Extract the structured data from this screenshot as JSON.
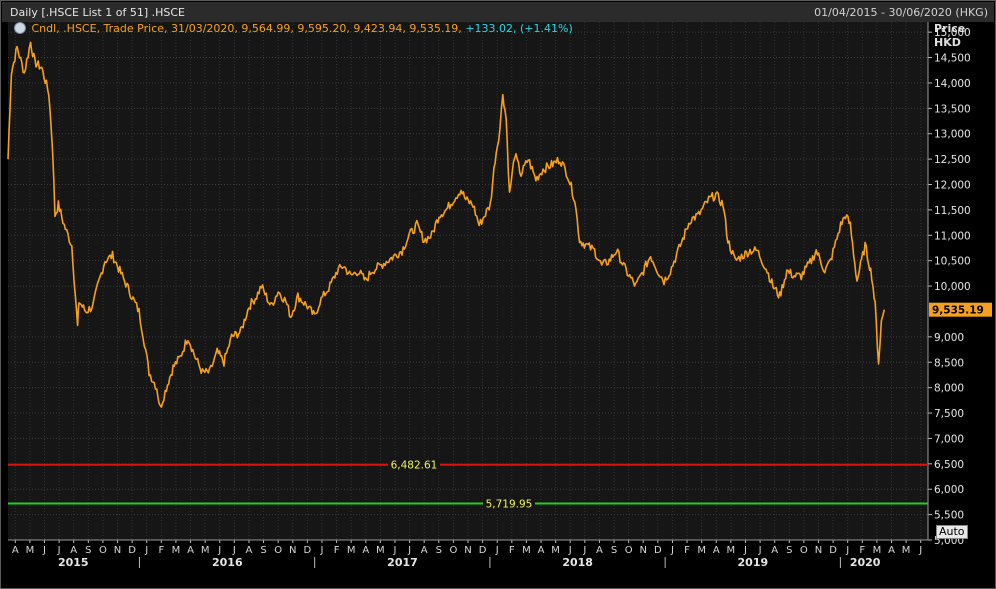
{
  "header": {
    "title": "Daily [.HSCE List 1 of 51] .HSCE",
    "date_range": "01/04/2015 - 30/06/2020 (HKG)"
  },
  "legend": {
    "text": "Cndl, .HSCE, Trade Price, 31/03/2020, 9,564.99, 9,595.20, 9,423.94, 9,535.19,",
    "change": "+133.02, (+1.41%)"
  },
  "y_axis_header": {
    "line1": "Price",
    "line2": "HKD"
  },
  "auto_button": "Auto",
  "chart_data": {
    "type": "line",
    "series": [
      {
        "color": "#f7a01c",
        "points": [
          [
            "2015-04-01",
            12500
          ],
          [
            "2015-04-08",
            14200
          ],
          [
            "2015-04-20",
            14700
          ],
          [
            "2015-05-05",
            14200
          ],
          [
            "2015-05-18",
            14800
          ],
          [
            "2015-05-27",
            14400
          ],
          [
            "2015-06-10",
            14300
          ],
          [
            "2015-06-25",
            13800
          ],
          [
            "2015-07-03",
            12700
          ],
          [
            "2015-07-08",
            11400
          ],
          [
            "2015-07-15",
            11600
          ],
          [
            "2015-07-27",
            11200
          ],
          [
            "2015-08-12",
            10800
          ],
          [
            "2015-08-24",
            9200
          ],
          [
            "2015-08-27",
            9700
          ],
          [
            "2015-09-10",
            9500
          ],
          [
            "2015-09-25",
            9600
          ],
          [
            "2015-10-05",
            10000
          ],
          [
            "2015-10-20",
            10500
          ],
          [
            "2015-11-05",
            10600
          ],
          [
            "2015-11-20",
            10300
          ],
          [
            "2015-12-10",
            9900
          ],
          [
            "2015-12-30",
            9500
          ],
          [
            "2016-01-10",
            8900
          ],
          [
            "2016-01-20",
            8300
          ],
          [
            "2016-02-05",
            8000
          ],
          [
            "2016-02-12",
            7600
          ],
          [
            "2016-02-25",
            8000
          ],
          [
            "2016-03-10",
            8400
          ],
          [
            "2016-03-25",
            8600
          ],
          [
            "2016-04-10",
            9000
          ],
          [
            "2016-04-25",
            8600
          ],
          [
            "2016-05-10",
            8300
          ],
          [
            "2016-05-25",
            8300
          ],
          [
            "2016-06-10",
            8700
          ],
          [
            "2016-06-24",
            8500
          ],
          [
            "2016-07-10",
            9000
          ],
          [
            "2016-07-29",
            9100
          ],
          [
            "2016-08-15",
            9600
          ],
          [
            "2016-08-31",
            9800
          ],
          [
            "2016-09-10",
            10000
          ],
          [
            "2016-09-30",
            9600
          ],
          [
            "2016-10-15",
            9900
          ],
          [
            "2016-10-31",
            9700
          ],
          [
            "2016-11-10",
            9400
          ],
          [
            "2016-11-25",
            9800
          ],
          [
            "2016-12-15",
            9600
          ],
          [
            "2016-12-30",
            9400
          ],
          [
            "2017-01-10",
            9700
          ],
          [
            "2017-01-31",
            10000
          ],
          [
            "2017-02-15",
            10300
          ],
          [
            "2017-02-28",
            10400
          ],
          [
            "2017-03-15",
            10200
          ],
          [
            "2017-03-31",
            10300
          ],
          [
            "2017-04-15",
            10100
          ],
          [
            "2017-04-28",
            10300
          ],
          [
            "2017-05-15",
            10400
          ],
          [
            "2017-05-31",
            10500
          ],
          [
            "2017-06-15",
            10600
          ],
          [
            "2017-06-30",
            10700
          ],
          [
            "2017-07-15",
            11000
          ],
          [
            "2017-07-31",
            11200
          ],
          [
            "2017-08-15",
            10900
          ],
          [
            "2017-08-31",
            11000
          ],
          [
            "2017-09-15",
            11400
          ],
          [
            "2017-09-30",
            11500
          ],
          [
            "2017-10-15",
            11700
          ],
          [
            "2017-10-31",
            11900
          ],
          [
            "2017-11-10",
            11700
          ],
          [
            "2017-11-25",
            11600
          ],
          [
            "2017-12-08",
            11200
          ],
          [
            "2017-12-31",
            11600
          ],
          [
            "2018-01-10",
            12500
          ],
          [
            "2018-01-20",
            13100
          ],
          [
            "2018-01-26",
            13800
          ],
          [
            "2018-02-02",
            13300
          ],
          [
            "2018-02-09",
            11800
          ],
          [
            "2018-02-20",
            12600
          ],
          [
            "2018-03-05",
            12200
          ],
          [
            "2018-03-20",
            12500
          ],
          [
            "2018-04-05",
            12100
          ],
          [
            "2018-04-20",
            12300
          ],
          [
            "2018-05-10",
            12400
          ],
          [
            "2018-05-25",
            12500
          ],
          [
            "2018-06-10",
            12200
          ],
          [
            "2018-06-25",
            11700
          ],
          [
            "2018-07-05",
            10900
          ],
          [
            "2018-07-20",
            10800
          ],
          [
            "2018-08-05",
            10700
          ],
          [
            "2018-08-20",
            10400
          ],
          [
            "2018-09-05",
            10500
          ],
          [
            "2018-09-20",
            10700
          ],
          [
            "2018-10-10",
            10300
          ],
          [
            "2018-10-30",
            10000
          ],
          [
            "2018-11-15",
            10300
          ],
          [
            "2018-11-30",
            10600
          ],
          [
            "2018-12-15",
            10300
          ],
          [
            "2018-12-28",
            10100
          ],
          [
            "2019-01-10",
            10300
          ],
          [
            "2019-01-31",
            10800
          ],
          [
            "2019-02-20",
            11300
          ],
          [
            "2019-03-10",
            11400
          ],
          [
            "2019-03-31",
            11700
          ],
          [
            "2019-04-15",
            11800
          ],
          [
            "2019-04-30",
            11600
          ],
          [
            "2019-05-10",
            10900
          ],
          [
            "2019-05-25",
            10500
          ],
          [
            "2019-06-10",
            10600
          ],
          [
            "2019-06-25",
            10700
          ],
          [
            "2019-07-10",
            10700
          ],
          [
            "2019-07-31",
            10300
          ],
          [
            "2019-08-12",
            10000
          ],
          [
            "2019-08-26",
            9800
          ],
          [
            "2019-09-10",
            10300
          ],
          [
            "2019-09-25",
            10200
          ],
          [
            "2019-10-10",
            10200
          ],
          [
            "2019-10-31",
            10500
          ],
          [
            "2019-11-10",
            10700
          ],
          [
            "2019-11-28",
            10300
          ],
          [
            "2019-12-10",
            10500
          ],
          [
            "2019-12-31",
            11200
          ],
          [
            "2020-01-10",
            11400
          ],
          [
            "2020-01-20",
            11200
          ],
          [
            "2020-02-03",
            10100
          ],
          [
            "2020-02-20",
            10800
          ],
          [
            "2020-03-05",
            10200
          ],
          [
            "2020-03-12",
            9600
          ],
          [
            "2020-03-19",
            8500
          ],
          [
            "2020-03-25",
            9300
          ],
          [
            "2020-03-31",
            9535
          ]
        ]
      }
    ],
    "y_ticks": [
      "15,000",
      "14,500",
      "14,000",
      "13,500",
      "13,000",
      "12,500",
      "12,000",
      "11,500",
      "11,000",
      "10,500",
      "10,000",
      "9,000",
      "8,500",
      "8,000",
      "7,500",
      "7,000",
      "6,500",
      "6,000",
      "5,500",
      "5,000"
    ],
    "ylim": [
      5000,
      15200
    ],
    "last_price": {
      "value": 9535.19,
      "label": "9,535.19"
    },
    "horizontal_lines": [
      {
        "value": 6482.61,
        "label": "6,482.61",
        "color": "#e01010"
      },
      {
        "value": 5719.95,
        "label": "5,719.95",
        "color": "#22d022"
      }
    ],
    "x_months": [
      "A",
      "M",
      "J",
      "J",
      "A",
      "S",
      "O",
      "N",
      "D",
      "J",
      "F",
      "M",
      "A",
      "M",
      "J",
      "J",
      "A",
      "S",
      "O",
      "N",
      "D",
      "J",
      "F",
      "M",
      "A",
      "M",
      "J",
      "J",
      "A",
      "S",
      "O",
      "N",
      "D",
      "J",
      "F",
      "M",
      "A",
      "M",
      "J",
      "J",
      "A",
      "S",
      "O",
      "N",
      "D",
      "J",
      "F",
      "M",
      "A",
      "M",
      "J",
      "J",
      "A",
      "S",
      "O",
      "N",
      "D",
      "J",
      "F",
      "M",
      "A",
      "M",
      "J"
    ],
    "x_years": [
      "2015",
      "2016",
      "2017",
      "2018",
      "2019",
      "2020"
    ],
    "x_range": [
      "2015-04-01",
      "2020-06-30"
    ],
    "grid": true
  }
}
